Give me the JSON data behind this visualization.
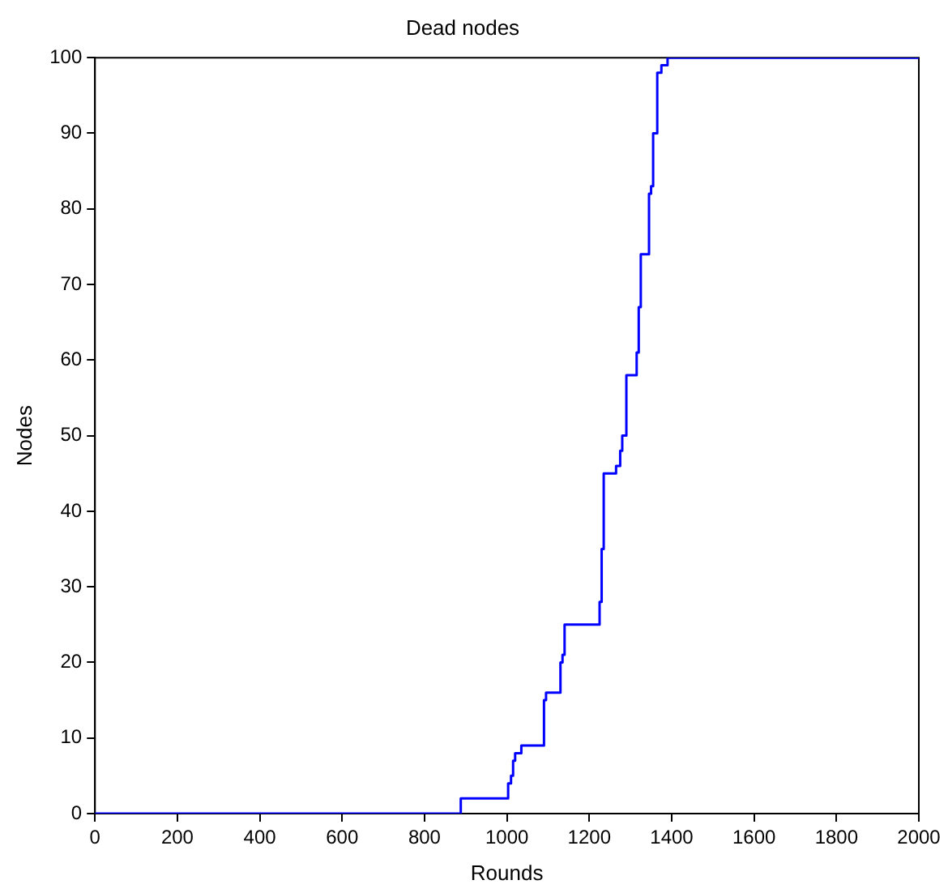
{
  "chart_data": {
    "type": "step",
    "title": "Dead nodes",
    "xlabel": "Rounds",
    "ylabel": "Nodes",
    "x": [
      0,
      888,
      1000,
      1003,
      1010,
      1015,
      1020,
      1035,
      1085,
      1090,
      1095,
      1125,
      1130,
      1135,
      1140,
      1220,
      1225,
      1230,
      1235,
      1255,
      1265,
      1275,
      1280,
      1290,
      1305,
      1315,
      1320,
      1325,
      1345,
      1350,
      1355,
      1365,
      1375,
      1390,
      2000
    ],
    "series": [
      {
        "color": "#0000ff",
        "values": [
          0,
          2,
          2,
          4,
          5,
          7,
          8,
          9,
          9,
          15,
          16,
          16,
          20,
          21,
          25,
          25,
          28,
          35,
          45,
          45,
          46,
          48,
          50,
          58,
          58,
          61,
          67,
          74,
          82,
          83,
          90,
          98,
          99,
          100,
          100
        ]
      }
    ],
    "xlim": [
      0,
      2000
    ],
    "xticks": [
      0,
      200,
      400,
      600,
      800,
      1000,
      1200,
      1400,
      1600,
      1800,
      2000
    ],
    "ylim": [
      0,
      100
    ],
    "yticks": [
      0,
      10,
      20,
      30,
      40,
      50,
      60,
      70,
      80,
      90,
      100
    ],
    "grid": false,
    "legend": false,
    "marker": "none",
    "line_style": "solid"
  }
}
